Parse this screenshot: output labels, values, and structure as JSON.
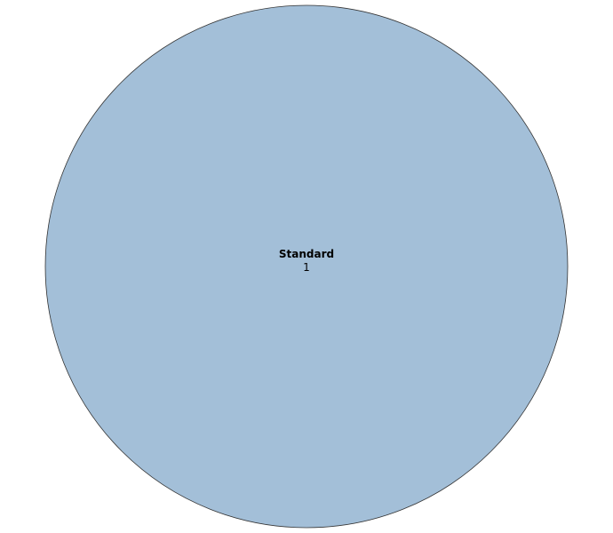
{
  "chart_data": {
    "type": "pie",
    "title": "",
    "slices": [
      {
        "label": "Standard",
        "value": 1,
        "value_label": "1",
        "color": "#a3bfd8"
      }
    ],
    "stroke_color": "#333333",
    "legend": "none"
  }
}
